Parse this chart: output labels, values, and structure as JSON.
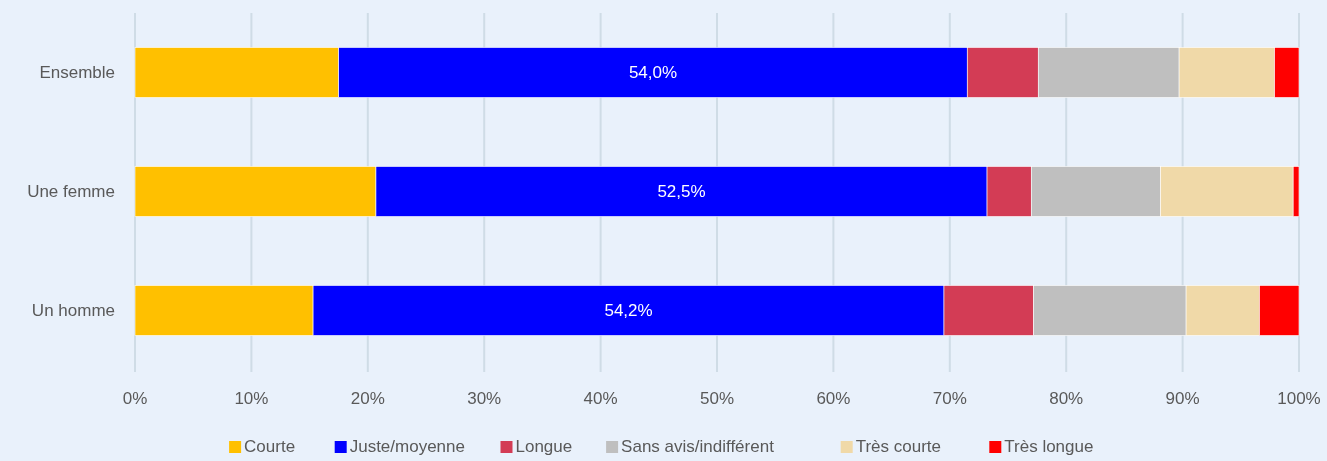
{
  "chart_data": {
    "type": "bar",
    "orientation": "horizontal",
    "stacked": true,
    "categories": [
      "Ensemble",
      "Une femme",
      "Un homme"
    ],
    "series": [
      {
        "name": "Courte",
        "color": "#ffc000",
        "values": [
          17.5,
          20.7,
          15.3
        ]
      },
      {
        "name": "Juste/moyenne",
        "color": "#0000ff",
        "values": [
          54.0,
          52.5,
          54.2
        ],
        "value_labels": [
          "54,0%",
          "52,5%",
          "54,2%"
        ]
      },
      {
        "name": "Longue",
        "color": "#d33c55",
        "values": [
          6.1,
          3.8,
          7.7
        ]
      },
      {
        "name": "Sans avis/indifférent",
        "color": "#bfbfbf",
        "values": [
          12.1,
          11.1,
          13.1
        ]
      },
      {
        "name": "Très courte",
        "color": "#f0d9a8",
        "values": [
          8.2,
          11.4,
          6.3
        ]
      },
      {
        "name": "Très longue",
        "color": "#ff0000",
        "values": [
          2.1,
          0.5,
          3.4
        ]
      }
    ],
    "xlim": [
      0,
      100
    ],
    "xticks": [
      {
        "value": 0,
        "label": "0%"
      },
      {
        "value": 10,
        "label": "10%"
      },
      {
        "value": 20,
        "label": "20%"
      },
      {
        "value": 30,
        "label": "30%"
      },
      {
        "value": 40,
        "label": "40%"
      },
      {
        "value": 50,
        "label": "50%"
      },
      {
        "value": 60,
        "label": "60%"
      },
      {
        "value": 70,
        "label": "70%"
      },
      {
        "value": 80,
        "label": "80%"
      },
      {
        "value": 90,
        "label": "90%"
      },
      {
        "value": 100,
        "label": "100%"
      }
    ],
    "grid": "x",
    "legend": "bottom"
  }
}
